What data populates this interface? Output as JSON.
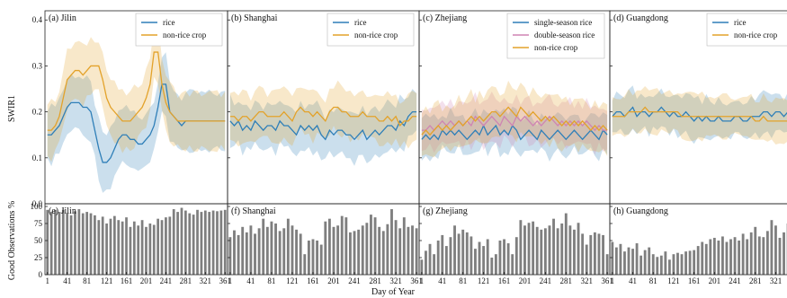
{
  "labels": {
    "y_top": "SWIR1",
    "y_bottom": "Good Observations %",
    "x": "Day of Year"
  },
  "days": [
    1,
    9,
    17,
    25,
    33,
    41,
    49,
    57,
    65,
    73,
    81,
    89,
    97,
    105,
    113,
    121,
    129,
    137,
    145,
    153,
    161,
    169,
    177,
    185,
    193,
    201,
    209,
    217,
    225,
    233,
    241,
    249,
    257,
    265,
    273,
    281,
    289,
    297,
    305,
    313,
    321,
    329,
    337,
    345,
    353,
    361
  ],
  "x_ticks": [
    1,
    41,
    81,
    121,
    161,
    201,
    241,
    281,
    321,
    361
  ],
  "top_y_ticks": [
    "0.0",
    "0.1",
    "0.2",
    "0.3",
    "0.4"
  ],
  "bottom_y_ticks": [
    "0",
    "25",
    "50",
    "75",
    "100"
  ],
  "colors": {
    "rice": "#2f7fb8",
    "double": "#cf84b3",
    "nonrice": "#e3a22a",
    "bar": "#7f7f7f"
  },
  "chart_data": [
    {
      "type": "line",
      "title": "(a) Jilin",
      "ylim": [
        0,
        0.42
      ],
      "legend_position": "top-right",
      "series": [
        {
          "name": "rice",
          "color_key": "rice",
          "values": [
            0.15,
            0.15,
            0.16,
            0.17,
            0.19,
            0.21,
            0.22,
            0.22,
            0.22,
            0.21,
            0.21,
            0.2,
            0.16,
            0.12,
            0.09,
            0.09,
            0.1,
            0.12,
            0.14,
            0.15,
            0.15,
            0.14,
            0.14,
            0.13,
            0.13,
            0.14,
            0.15,
            0.17,
            0.21,
            0.26,
            0.26,
            0.2,
            0.19,
            0.18,
            0.17,
            0.18,
            0.18,
            0.18,
            0.18,
            0.18,
            0.18,
            0.18,
            0.18,
            0.18,
            0.18,
            0.18
          ],
          "band": 0.06
        },
        {
          "name": "non-rice crop",
          "color_key": "nonrice",
          "values": [
            0.16,
            0.16,
            0.17,
            0.19,
            0.23,
            0.27,
            0.28,
            0.29,
            0.29,
            0.28,
            0.29,
            0.3,
            0.3,
            0.3,
            0.27,
            0.23,
            0.21,
            0.2,
            0.19,
            0.18,
            0.18,
            0.18,
            0.19,
            0.2,
            0.21,
            0.23,
            0.26,
            0.33,
            0.33,
            0.26,
            0.22,
            0.2,
            0.19,
            0.18,
            0.18,
            0.18,
            0.18,
            0.18,
            0.18,
            0.18,
            0.18,
            0.18,
            0.18,
            0.18,
            0.18,
            0.18
          ],
          "band": 0.06
        }
      ]
    },
    {
      "type": "line",
      "title": "(b) Shanghai",
      "ylim": [
        0,
        0.42
      ],
      "legend_position": "top-right",
      "series": [
        {
          "name": "rice",
          "color_key": "rice",
          "values": [
            0.18,
            0.17,
            0.18,
            0.16,
            0.17,
            0.16,
            0.18,
            0.17,
            0.16,
            0.17,
            0.17,
            0.16,
            0.18,
            0.17,
            0.17,
            0.16,
            0.15,
            0.17,
            0.16,
            0.17,
            0.16,
            0.17,
            0.15,
            0.14,
            0.16,
            0.15,
            0.16,
            0.16,
            0.15,
            0.15,
            0.14,
            0.15,
            0.16,
            0.14,
            0.15,
            0.16,
            0.15,
            0.16,
            0.17,
            0.17,
            0.16,
            0.18,
            0.17,
            0.19,
            0.2,
            0.2
          ],
          "band": 0.05
        },
        {
          "name": "non-rice crop",
          "color_key": "nonrice",
          "values": [
            0.19,
            0.19,
            0.18,
            0.19,
            0.19,
            0.18,
            0.19,
            0.2,
            0.2,
            0.19,
            0.19,
            0.19,
            0.19,
            0.2,
            0.19,
            0.18,
            0.2,
            0.21,
            0.2,
            0.2,
            0.19,
            0.2,
            0.19,
            0.18,
            0.2,
            0.21,
            0.21,
            0.2,
            0.2,
            0.19,
            0.19,
            0.19,
            0.2,
            0.19,
            0.19,
            0.19,
            0.18,
            0.18,
            0.19,
            0.18,
            0.19,
            0.17,
            0.18,
            0.18,
            0.19,
            0.19
          ],
          "band": 0.05
        }
      ]
    },
    {
      "type": "line",
      "title": "(c) Zhejiang",
      "ylim": [
        0,
        0.42
      ],
      "legend_position": "top-right",
      "series": [
        {
          "name": "single-season rice",
          "color_key": "rice",
          "values": [
            0.14,
            0.15,
            0.14,
            0.15,
            0.14,
            0.16,
            0.15,
            0.16,
            0.15,
            0.16,
            0.15,
            0.14,
            0.15,
            0.16,
            0.15,
            0.17,
            0.15,
            0.16,
            0.17,
            0.15,
            0.16,
            0.15,
            0.17,
            0.16,
            0.14,
            0.15,
            0.16,
            0.15,
            0.14,
            0.16,
            0.15,
            0.14,
            0.15,
            0.16,
            0.15,
            0.14,
            0.15,
            0.16,
            0.15,
            0.14,
            0.15,
            0.16,
            0.15,
            0.14,
            0.16,
            0.15
          ],
          "band": 0.04
        },
        {
          "name": "double-season rice",
          "color_key": "double",
          "values": [
            0.16,
            0.16,
            0.17,
            0.16,
            0.17,
            0.18,
            0.17,
            0.18,
            0.17,
            0.18,
            0.17,
            0.18,
            0.17,
            0.19,
            0.18,
            0.17,
            0.18,
            0.19,
            0.18,
            0.17,
            0.19,
            0.18,
            0.17,
            0.19,
            0.18,
            0.19,
            0.18,
            0.17,
            0.18,
            0.17,
            0.18,
            0.19,
            0.18,
            0.17,
            0.18,
            0.17,
            0.18,
            0.17,
            0.18,
            0.17,
            0.18,
            0.17,
            0.16,
            0.17,
            0.16,
            0.16
          ],
          "band": 0.045
        },
        {
          "name": "non-rice crop",
          "color_key": "nonrice",
          "values": [
            0.15,
            0.16,
            0.15,
            0.16,
            0.17,
            0.16,
            0.17,
            0.16,
            0.17,
            0.18,
            0.17,
            0.18,
            0.19,
            0.18,
            0.19,
            0.18,
            0.19,
            0.2,
            0.2,
            0.19,
            0.2,
            0.21,
            0.2,
            0.19,
            0.21,
            0.2,
            0.19,
            0.2,
            0.19,
            0.18,
            0.19,
            0.18,
            0.19,
            0.18,
            0.17,
            0.18,
            0.17,
            0.18,
            0.17,
            0.18,
            0.17,
            0.16,
            0.17,
            0.16,
            0.17,
            0.16
          ],
          "band": 0.05
        }
      ]
    },
    {
      "type": "line",
      "title": "(d) Guangdong",
      "ylim": [
        0,
        0.42
      ],
      "legend_position": "top-right",
      "series": [
        {
          "name": "rice",
          "color_key": "rice",
          "values": [
            0.19,
            0.2,
            0.2,
            0.19,
            0.2,
            0.21,
            0.19,
            0.2,
            0.2,
            0.19,
            0.2,
            0.2,
            0.21,
            0.2,
            0.19,
            0.2,
            0.19,
            0.19,
            0.2,
            0.19,
            0.18,
            0.19,
            0.18,
            0.19,
            0.18,
            0.18,
            0.19,
            0.18,
            0.18,
            0.18,
            0.19,
            0.19,
            0.18,
            0.18,
            0.19,
            0.19,
            0.19,
            0.2,
            0.2,
            0.19,
            0.2,
            0.2,
            0.19,
            0.2,
            0.2,
            0.2
          ],
          "band": 0.04
        },
        {
          "name": "non-rice crop",
          "color_key": "nonrice",
          "values": [
            0.19,
            0.19,
            0.19,
            0.19,
            0.2,
            0.2,
            0.2,
            0.2,
            0.21,
            0.2,
            0.2,
            0.2,
            0.2,
            0.2,
            0.2,
            0.2,
            0.2,
            0.19,
            0.19,
            0.19,
            0.19,
            0.19,
            0.19,
            0.19,
            0.19,
            0.19,
            0.19,
            0.19,
            0.19,
            0.19,
            0.19,
            0.19,
            0.19,
            0.19,
            0.19,
            0.18,
            0.18,
            0.19,
            0.18,
            0.18,
            0.18,
            0.18,
            0.18,
            0.18,
            0.18,
            0.18
          ],
          "band": 0.045
        }
      ]
    },
    {
      "type": "bar",
      "title": "(e) Jilin",
      "ylim": [
        0,
        100
      ],
      "values": [
        95,
        92,
        95,
        92,
        95,
        90,
        87,
        93,
        96,
        90,
        92,
        90,
        87,
        80,
        85,
        75,
        82,
        86,
        80,
        78,
        84,
        70,
        78,
        72,
        80,
        70,
        75,
        73,
        82,
        80,
        84,
        85,
        96,
        92,
        98,
        94,
        90,
        88,
        95,
        92,
        94,
        92,
        94,
        93,
        94,
        95
      ]
    },
    {
      "type": "bar",
      "title": "(f) Shanghai",
      "ylim": [
        0,
        100
      ],
      "values": [
        55,
        65,
        58,
        70,
        62,
        72,
        60,
        68,
        82,
        70,
        78,
        75,
        64,
        68,
        82,
        72,
        66,
        60,
        30,
        50,
        52,
        50,
        44,
        78,
        82,
        70,
        72,
        86,
        84,
        62,
        64,
        66,
        72,
        76,
        88,
        84,
        70,
        64,
        74,
        96,
        80,
        68,
        84,
        70,
        72,
        68
      ]
    },
    {
      "type": "bar",
      "title": "(g) Zhejiang",
      "ylim": [
        0,
        100
      ],
      "values": [
        22,
        35,
        45,
        30,
        50,
        58,
        42,
        55,
        72,
        60,
        66,
        62,
        56,
        38,
        48,
        42,
        52,
        25,
        30,
        50,
        52,
        46,
        30,
        55,
        80,
        72,
        76,
        78,
        70,
        66,
        68,
        72,
        82,
        68,
        75,
        90,
        72,
        66,
        76,
        60,
        44,
        58,
        62,
        60,
        58,
        30
      ]
    },
    {
      "type": "bar",
      "title": "(h) Guangdong",
      "ylim": [
        0,
        100
      ],
      "values": [
        48,
        40,
        45,
        34,
        40,
        38,
        46,
        28,
        36,
        40,
        30,
        26,
        28,
        34,
        22,
        30,
        32,
        30,
        34,
        35,
        36,
        42,
        48,
        45,
        52,
        54,
        50,
        56,
        48,
        52,
        55,
        50,
        60,
        52,
        62,
        70,
        56,
        55,
        64,
        80,
        72,
        54,
        62,
        75,
        50,
        52
      ]
    }
  ]
}
